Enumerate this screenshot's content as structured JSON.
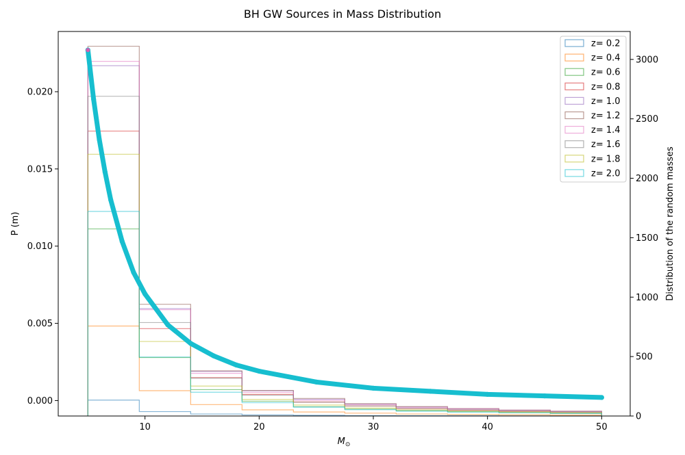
{
  "chart_data": {
    "type": "line",
    "title": "BH GW Sources in Mass Distribution",
    "xlabel": "M_⊙",
    "ylabel_left": "P (m)",
    "ylabel_right": "Distribution of the random masses",
    "xlim": [
      2.4,
      52.5
    ],
    "ylim_left": [
      -0.001,
      0.0239
    ],
    "ylim_right": [
      0,
      3235
    ],
    "x_ticks": [
      10,
      20,
      30,
      40,
      50
    ],
    "y_ticks_left": [
      0.0,
      0.005,
      0.01,
      0.015,
      0.02
    ],
    "y_ticks_left_labels": [
      "0.000",
      "0.005",
      "0.010",
      "0.015",
      "0.020"
    ],
    "y_ticks_right": [
      0,
      500,
      1000,
      1500,
      2000,
      2500,
      3000
    ],
    "grid": false,
    "legend_position": "top-right",
    "bin_edges": [
      5.0,
      9.5,
      14.0,
      18.5,
      23.0,
      27.5,
      32.0,
      36.5,
      41.0,
      45.5,
      50.0
    ],
    "histogram_counts_right_axis": [
      {
        "name": "z= 0.2",
        "color": "#1f77b4",
        "values": [
          134,
          37,
          17,
          9,
          6,
          3,
          2,
          2,
          1,
          0
        ]
      },
      {
        "name": "z= 0.4",
        "color": "#ff7f0e",
        "values": [
          757,
          213,
          96,
          52,
          34,
          24,
          17,
          13,
          10,
          8
        ]
      },
      {
        "name": "z= 0.6",
        "color": "#2ca02c",
        "values": [
          1574,
          492,
          222,
          124,
          78,
          58,
          44,
          36,
          29,
          22
        ]
      },
      {
        "name": "z= 0.8",
        "color": "#d62728",
        "values": [
          2397,
          735,
          323,
          182,
          118,
          84,
          62,
          48,
          38,
          30
        ]
      },
      {
        "name": "z= 1.0",
        "color": "#9467bd",
        "values": [
          2947,
          903,
          375,
          212,
          140,
          100,
          75,
          60,
          49,
          38
        ]
      },
      {
        "name": "z= 1.2",
        "color": "#8c564b",
        "values": [
          3111,
          940,
          380,
          215,
          148,
          104,
          79,
          63,
          50,
          41
        ]
      },
      {
        "name": "z= 1.4",
        "color": "#e377c2",
        "values": [
          2984,
          894,
          359,
          199,
          132,
          96,
          73,
          59,
          48,
          39
        ]
      },
      {
        "name": "z= 1.6",
        "color": "#7f7f7f",
        "values": [
          2690,
          786,
          318,
          175,
          116,
          84,
          63,
          52,
          43,
          35
        ]
      },
      {
        "name": "z= 1.8",
        "color": "#bcbd22",
        "values": [
          2202,
          627,
          252,
          139,
          92,
          67,
          51,
          41,
          34,
          28
        ]
      },
      {
        "name": "z= 2.0",
        "color": "#17becf",
        "values": [
          1721,
          496,
          200,
          112,
          74,
          53,
          41,
          33,
          27,
          22
        ]
      }
    ],
    "pdf_curve": {
      "note_axis": "left",
      "x": [
        5.0,
        5.5,
        6.0,
        6.5,
        7.0,
        8.0,
        9.0,
        10.0,
        12.0,
        14.0,
        16.0,
        18.0,
        20.0,
        25.0,
        30.0,
        35.0,
        40.0,
        45.0,
        50.0
      ],
      "y": [
        0.0227,
        0.0195,
        0.0169,
        0.0148,
        0.013,
        0.0103,
        0.0083,
        0.0069,
        0.0049,
        0.0037,
        0.0029,
        0.0023,
        0.0019,
        0.0012,
        0.0008,
        0.0006,
        0.0004,
        0.0003,
        0.0002
      ]
    }
  }
}
